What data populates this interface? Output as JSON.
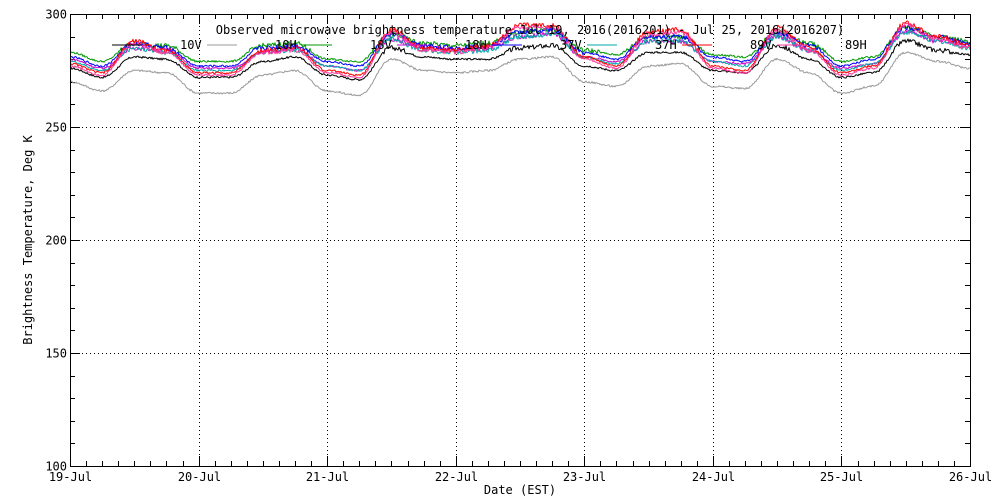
{
  "chart_data": {
    "type": "line",
    "title": "Observed microwave brightness temperature Jul 19, 2016(2016201) - Jul 25, 2016(2016207)",
    "xlabel": "Date (EST)",
    "ylabel": "Brightness Temperature, Deg K",
    "xlim": [
      0,
      7
    ],
    "ylim": [
      100,
      300
    ],
    "x_ticks": [
      {
        "value": 0,
        "label": "19-Jul"
      },
      {
        "value": 1,
        "label": "20-Jul"
      },
      {
        "value": 2,
        "label": "21-Jul"
      },
      {
        "value": 3,
        "label": "22-Jul"
      },
      {
        "value": 4,
        "label": "23-Jul"
      },
      {
        "value": 5,
        "label": "24-Jul"
      },
      {
        "value": 6,
        "label": "25-Jul"
      },
      {
        "value": 7,
        "label": "26-Jul"
      }
    ],
    "y_ticks": [
      100,
      150,
      200,
      250,
      300
    ],
    "grid": true,
    "legend_position": "top",
    "x": [
      0.0,
      0.25,
      0.5,
      0.75,
      1.0,
      1.25,
      1.5,
      1.75,
      2.0,
      2.25,
      2.5,
      2.75,
      3.0,
      3.25,
      3.5,
      3.75,
      4.0,
      4.25,
      4.5,
      4.75,
      5.0,
      5.25,
      5.5,
      5.75,
      6.0,
      6.25,
      6.5,
      6.75,
      7.0
    ],
    "series": [
      {
        "name": "10V",
        "color": "#000000",
        "values": [
          276,
          272,
          281,
          280,
          272,
          272,
          279,
          281,
          273,
          271,
          285,
          281,
          280,
          280,
          285,
          286,
          277,
          275,
          283,
          283,
          275,
          274,
          286,
          280,
          272,
          274,
          288,
          284,
          282
        ]
      },
      {
        "name": "10H",
        "color": "#999999",
        "values": [
          270,
          266,
          275,
          274,
          265,
          265,
          273,
          275,
          266,
          264,
          280,
          275,
          274,
          275,
          280,
          281,
          270,
          268,
          277,
          278,
          268,
          267,
          280,
          274,
          265,
          268,
          283,
          279,
          276
        ]
      },
      {
        "name": "18V",
        "color": "#009900",
        "values": [
          283,
          279,
          287,
          286,
          279,
          279,
          286,
          287,
          280,
          279,
          291,
          287,
          286,
          287,
          292,
          293,
          284,
          282,
          290,
          290,
          282,
          281,
          292,
          287,
          279,
          281,
          294,
          290,
          288
        ]
      },
      {
        "name": "18H",
        "color": "#cc00cc",
        "values": [
          280,
          276,
          285,
          284,
          276,
          276,
          283,
          285,
          277,
          275,
          289,
          285,
          284,
          285,
          290,
          291,
          281,
          279,
          288,
          288,
          279,
          278,
          290,
          284,
          276,
          278,
          292,
          288,
          286
        ]
      },
      {
        "name": "37V",
        "color": "#0000ff",
        "values": [
          281,
          277,
          287,
          285,
          277,
          277,
          285,
          286,
          279,
          277,
          291,
          286,
          285,
          286,
          292,
          293,
          283,
          280,
          290,
          290,
          281,
          279,
          292,
          286,
          277,
          280,
          294,
          290,
          287
        ]
      },
      {
        "name": "37H",
        "color": "#00aaaa",
        "values": [
          279,
          275,
          285,
          283,
          275,
          275,
          283,
          284,
          277,
          275,
          289,
          284,
          283,
          284,
          290,
          291,
          281,
          278,
          288,
          288,
          279,
          277,
          290,
          284,
          275,
          278,
          292,
          288,
          285
        ]
      },
      {
        "name": "89V",
        "color": "#ff0000",
        "values": [
          278,
          274,
          288,
          284,
          274,
          274,
          284,
          285,
          275,
          273,
          293,
          285,
          284,
          286,
          295,
          295,
          281,
          277,
          292,
          293,
          277,
          275,
          294,
          285,
          274,
          277,
          296,
          290,
          286
        ]
      },
      {
        "name": "89H",
        "color": "#ff3399",
        "values": [
          277,
          273,
          287,
          283,
          273,
          273,
          283,
          284,
          274,
          272,
          292,
          284,
          283,
          285,
          294,
          294,
          280,
          276,
          291,
          292,
          276,
          274,
          293,
          284,
          273,
          276,
          295,
          289,
          285
        ]
      }
    ]
  }
}
